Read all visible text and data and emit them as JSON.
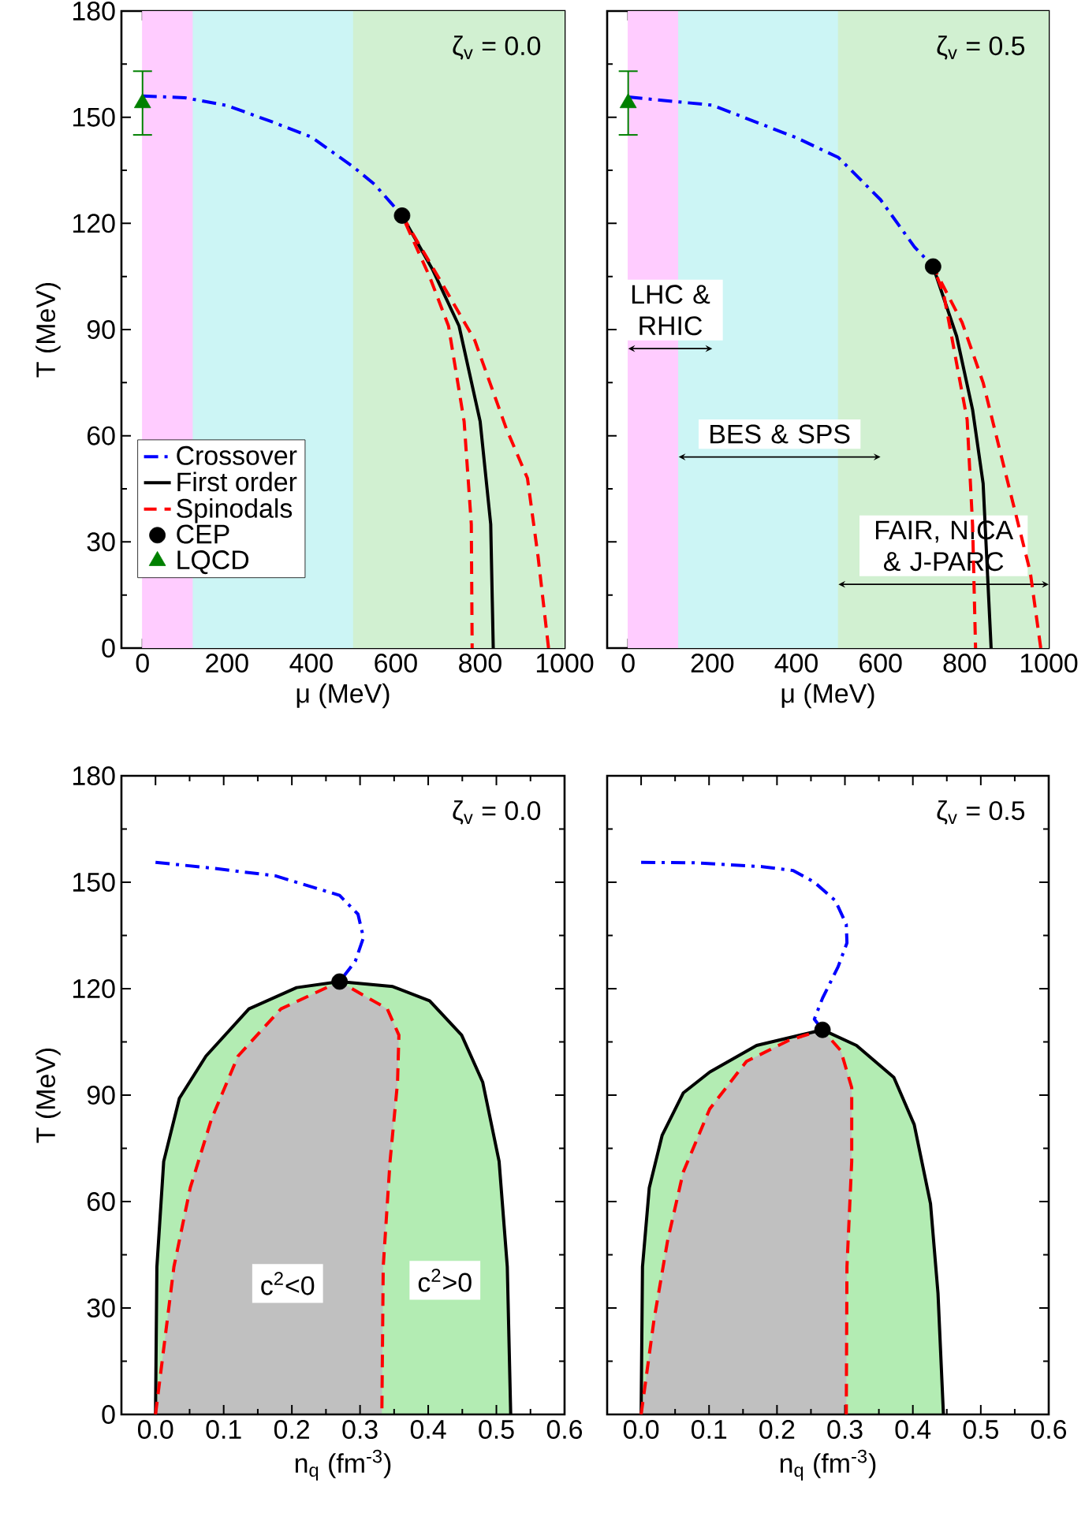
{
  "chart_data": [
    {
      "type": "line",
      "xlabel": "μ (MeV)",
      "ylabel": "T (MeV)",
      "xlim": [
        -50,
        1000
      ],
      "ylim": [
        0,
        180
      ],
      "xticks": [
        0,
        200,
        400,
        600,
        800,
        1000
      ],
      "yticks": [
        0,
        30,
        60,
        90,
        120,
        150,
        180
      ],
      "legend": "bottom left",
      "annotations": [
        "ζ$_{v}$ = 0.0"
      ],
      "bands": [
        {
          "axis": "x",
          "from": 0,
          "to": 200,
          "color": "#ffccff"
        },
        {
          "axis": "x",
          "from": 120,
          "to": 600,
          "color": "#ccf5f5"
        },
        {
          "axis": "x",
          "from": 500,
          "to": 1000,
          "color": "#d1f0d1"
        }
      ],
      "series": [
        {
          "name": "Crossover",
          "color": "#0000ff",
          "line_style": "dashdot",
          "x": [
            0,
            100,
            200,
            300,
            400,
            500,
            550,
            587,
            615
          ],
          "values": [
            156,
            155.5,
            153.3,
            149,
            144.4,
            135.9,
            131,
            126,
            122.2
          ]
        },
        {
          "name": "First order",
          "color": "#000000",
          "line_style": "solid",
          "x": [
            615,
            687,
            750,
            800,
            825,
            831
          ],
          "values": [
            122.2,
            107,
            91,
            64,
            35,
            0
          ]
        },
        {
          "name": "Spinodals",
          "color": "#ff0000",
          "line_style": "dashed",
          "x": [
            962,
            937,
            912,
            862,
            787,
            700,
            615,
            680,
            725,
            762,
            779,
            781
          ],
          "values": [
            0,
            26,
            48,
            62,
            87,
            105,
            122.2,
            105,
            91,
            64,
            35,
            0
          ]
        },
        {
          "name": "CEP",
          "type": "scatter",
          "color": "#000000",
          "marker": "circle",
          "x": [
            615
          ],
          "values": [
            122.2
          ]
        },
        {
          "name": "LQCD",
          "type": "scatter",
          "color": "#008000",
          "marker": "triangle",
          "x": [
            0
          ],
          "values": [
            154
          ],
          "errors": [
            9
          ]
        }
      ]
    },
    {
      "type": "line",
      "xlabel": "μ (MeV)",
      "xlim": [
        -50,
        1000
      ],
      "ylim": [
        0,
        180
      ],
      "xticks": [
        0,
        200,
        400,
        600,
        800,
        1000
      ],
      "yticks": [
        0,
        30,
        60,
        90,
        120,
        150,
        180
      ],
      "tick_labels": "x",
      "annotations": [
        "ζ$_{v}$ = 0.5"
      ],
      "bands": [
        {
          "axis": "x",
          "from": 0,
          "to": 200,
          "color": "#ffccff",
          "label": "LHC & RHIC"
        },
        {
          "axis": "x",
          "from": 120,
          "to": 600,
          "color": "#ccf5f5",
          "label": "BES & SPS"
        },
        {
          "axis": "x",
          "from": 500,
          "to": 1000,
          "color": "#d1f0d1",
          "label": "FAIR, NICA & J-PARC"
        }
      ],
      "series": [
        {
          "color": "#0000ff",
          "line_style": "dashdot",
          "x": [
            0,
            200,
            400,
            500,
            600,
            681,
            725
          ],
          "values": [
            155.7,
            153.4,
            144.2,
            138.6,
            126.7,
            113.3,
            107.8
          ]
        },
        {
          "color": "#000000",
          "line_style": "solid",
          "x": [
            725,
            781,
            819,
            844,
            863
          ],
          "values": [
            107.8,
            88.1,
            67.3,
            46.5,
            0
          ]
        },
        {
          "color": "#ff0000",
          "line_style": "dashed",
          "x": [
            981,
            956,
            894,
            844,
            794,
            725,
            750,
            806,
            819,
            826
          ],
          "values": [
            0,
            21.5,
            51,
            75,
            92,
            107.8,
            100.2,
            64.5,
            34.6,
            0
          ]
        },
        {
          "type": "scatter",
          "color": "#000000",
          "marker": "circle",
          "x": [
            725
          ],
          "values": [
            107.8
          ]
        },
        {
          "type": "scatter",
          "color": "#008000",
          "marker": "triangle",
          "x": [
            0
          ],
          "values": [
            154
          ],
          "errors": [
            9
          ]
        }
      ]
    },
    {
      "type": "line",
      "xlabel": "n$_{q}$ (fm$^{-3}$)",
      "ylabel": "T (MeV)",
      "xlim": [
        -0.05,
        0.6
      ],
      "ylim": [
        0,
        180
      ],
      "xticks": [
        {
          "value": 0,
          "label": "0.0"
        },
        0.1,
        0.2,
        0.3,
        0.4,
        0.5,
        0.6
      ],
      "yticks": [
        0,
        30,
        60,
        90,
        120,
        150,
        180
      ],
      "annotations": [
        "ζ$_{v}$ = 0.0",
        "c$^{2}$<0",
        "c$^{2}$>0"
      ],
      "series": [
        {
          "color": "#0000ff",
          "line_style": "dashdot",
          "x": [
            0,
            0.082,
            0.176,
            0.27,
            0.297,
            0.305,
            0.293,
            0.27
          ],
          "values": [
            155.6,
            154,
            151.8,
            146.3,
            141,
            134.4,
            127.7,
            122
          ]
        },
        {
          "color": "#000000",
          "line_style": "solid",
          "x": [
            0,
            0.002,
            0.012,
            0.035,
            0.074,
            0.137,
            0.207,
            0.27,
            0.348,
            0.402,
            0.449,
            0.48,
            0.504,
            0.516,
            0.521
          ],
          "values": [
            0,
            41.6,
            71.3,
            89.1,
            101,
            114.3,
            120.3,
            122,
            120.6,
            116.6,
            106.9,
            93.6,
            71.3,
            41.6,
            0
          ]
        },
        {
          "color": "#ff0000",
          "line_style": "dashed",
          "x": [
            0,
            0.027,
            0.051,
            0.082,
            0.121,
            0.184,
            0.27,
            0.34,
            0.357,
            0.355,
            0.344,
            0.334,
            0.332
          ],
          "values": [
            0,
            41.6,
            63.9,
            83.2,
            101,
            114.3,
            122,
            114.3,
            106.9,
            93.6,
            71.3,
            41.6,
            0
          ]
        },
        {
          "type": "scatter",
          "color": "#000000",
          "marker": "circle",
          "x": [
            0.27
          ],
          "values": [
            122
          ]
        }
      ]
    },
    {
      "type": "line",
      "xlabel": "n$_{q}$ (fm$^{-3}$)",
      "xlim": [
        -0.05,
        0.6
      ],
      "ylim": [
        0,
        180
      ],
      "xticks": [
        {
          "value": 0,
          "label": "0.0"
        },
        0.1,
        0.2,
        0.3,
        0.4,
        0.5,
        0.6
      ],
      "yticks": [
        0,
        30,
        60,
        90,
        120,
        150,
        180
      ],
      "tick_labels": "x",
      "annotations": [
        "ζ$_{v}$ = 0.5"
      ],
      "series": [
        {
          "color": "#0000ff",
          "line_style": "dashdot",
          "x": [
            0,
            0.077,
            0.178,
            0.224,
            0.255,
            0.286,
            0.302,
            0.303,
            0.29,
            0.267,
            0.255,
            0.267
          ],
          "values": [
            155.6,
            155.5,
            154.4,
            153.3,
            150,
            144.8,
            138.1,
            132.9,
            126.2,
            117.3,
            111.4,
            108.4
          ]
        },
        {
          "color": "#000000",
          "line_style": "solid",
          "x": [
            0,
            0.002,
            0.012,
            0.031,
            0.062,
            0.101,
            0.17,
            0.267,
            0.317,
            0.372,
            0.402,
            0.426,
            0.437,
            0.445
          ],
          "values": [
            0,
            41.6,
            63.9,
            78.7,
            90.6,
            96.5,
            104,
            108.4,
            104,
            95,
            81.7,
            59.4,
            34.2,
            0
          ]
        },
        {
          "color": "#ff0000",
          "line_style": "dashed",
          "x": [
            0,
            0.019,
            0.039,
            0.062,
            0.101,
            0.155,
            0.217,
            0.267,
            0.294,
            0.31,
            0.31,
            0.303,
            0.302
          ],
          "values": [
            0,
            26.7,
            49,
            68.3,
            86.1,
            99.5,
            105.4,
            108.4,
            102.5,
            92.1,
            71.3,
            41.6,
            0
          ]
        },
        {
          "type": "scatter",
          "color": "#000000",
          "marker": "circle",
          "x": [
            0.267
          ],
          "values": [
            108.4
          ]
        }
      ]
    }
  ]
}
